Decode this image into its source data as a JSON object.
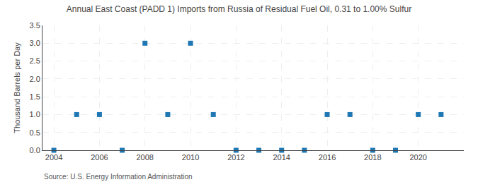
{
  "chart_data": {
    "type": "scatter",
    "title": "Annual East Coast (PADD 1) Imports from Russia of Residual Fuel Oil, 0.31 to 1.00% Sulfur",
    "ylabel": "Thousand Barrels per Day",
    "annotations": [
      "Source: U.S. Energy Information Administration"
    ],
    "x": [
      2004,
      2005,
      2006,
      2007,
      2008,
      2009,
      2010,
      2011,
      2012,
      2013,
      2014,
      2015,
      2016,
      2017,
      2018,
      2019,
      2020,
      2021
    ],
    "values": [
      0,
      1.0,
      1.0,
      0.0,
      3.0,
      1.0,
      3.0,
      1.0,
      0.0,
      0.0,
      0.0,
      0.0,
      1.0,
      1.0,
      0.0,
      0.0,
      1.0,
      1.0
    ],
    "marker": "square",
    "xlim": [
      2003.5,
      2022
    ],
    "xticks": [
      2004,
      2006,
      2008,
      2010,
      2012,
      2014,
      2016,
      2018,
      2020
    ],
    "ylim": [
      0,
      3.5
    ],
    "yticks": [
      {
        "value": 0.0,
        "label": "0.0"
      },
      0.5,
      {
        "value": 1.0,
        "label": "1.0"
      },
      1.5,
      {
        "value": 2.0,
        "label": "2.0"
      },
      2.5,
      {
        "value": 3.0,
        "label": "3.0"
      },
      3.5
    ],
    "grid": true
  }
}
